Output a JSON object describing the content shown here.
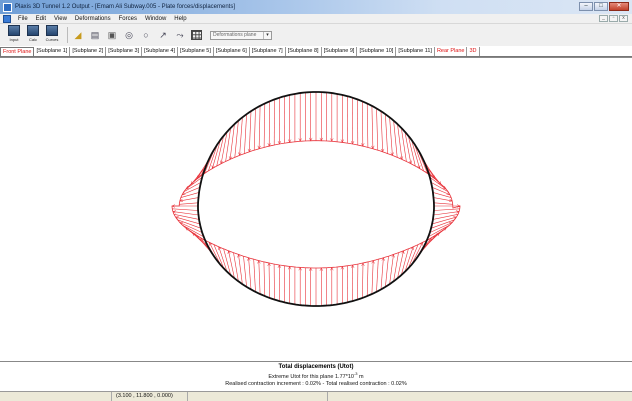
{
  "window": {
    "title": "Plaxis 3D Tunnel 1.2 Output - [Emam Ali Subway.005 - Plate forces/displacements]"
  },
  "menu": {
    "items": [
      "File",
      "Edit",
      "View",
      "Deformations",
      "Forces",
      "Window",
      "Help"
    ]
  },
  "toolbar": {
    "input_label": "Input",
    "calc_label": "Calc",
    "curves_label": "Curves",
    "plane_select_value": "Deformations plane"
  },
  "tabs": [
    "Front Plane",
    "[Subplane 1]",
    "[Subplane 2]",
    "[Subplane 3]",
    "[Subplane 4]",
    "[Subplane 5]",
    "[Subplane 6]",
    "[Subplane 7]",
    "[Subplane 8]",
    "[Subplane 9]",
    "[Subplane 10]",
    "[Subplane 11]",
    "Rear Plane",
    "3D"
  ],
  "legend": {
    "title": "Total displacements (Utot)",
    "extreme_prefix": "Extreme Utot for this plane 1.77*10",
    "extreme_exp": "-3",
    "extreme_unit": " m",
    "contraction": "Realised contraction increment : 0.02% - Total realised contraction : 0.02%"
  },
  "status": {
    "coords": "(3.100 , 11.800 , 0.000)"
  },
  "colors": {
    "displacement_lines": "#e8323a",
    "tunnel_lining": "#111111",
    "active_tab": "#dd1111"
  }
}
